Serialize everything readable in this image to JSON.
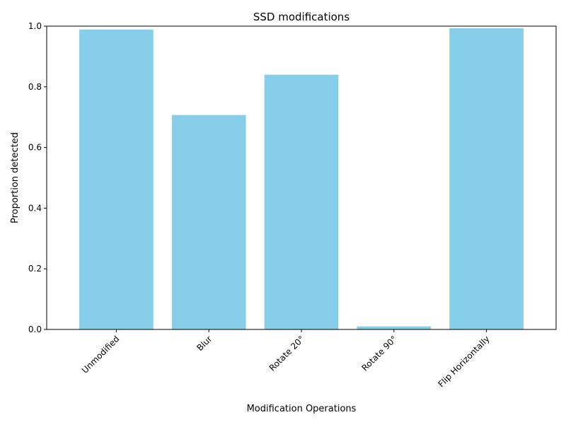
{
  "chart_data": {
    "type": "bar",
    "title": "SSD modifications",
    "xlabel": "Modification Operations",
    "ylabel": "Proportion detected",
    "categories": [
      "Unmodified",
      "Blur",
      "Rotate 20°",
      "Rotate 90°",
      "Flip Horizontally"
    ],
    "values": [
      0.989,
      0.707,
      0.84,
      0.01,
      0.993
    ],
    "ylim": [
      0,
      1.0
    ],
    "yticks": [
      "0.0",
      "0.2",
      "0.4",
      "0.6",
      "0.8",
      "1.0"
    ],
    "bar_color": "#87ceeb",
    "grid": false,
    "legend": "none"
  }
}
